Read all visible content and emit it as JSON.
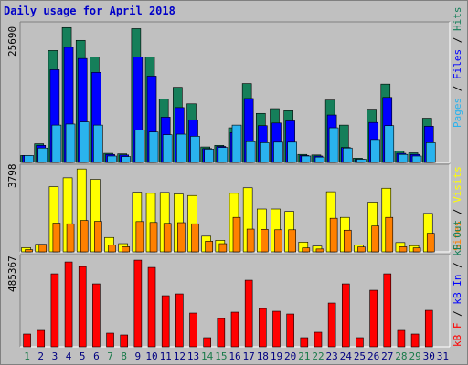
{
  "title": "Daily usage for April 2018",
  "colors": {
    "background": "#c0c0c0",
    "title": "#0000c8",
    "hits": "#157f5a",
    "files": "#0000ff",
    "pages": "#2ab3ee",
    "visits": "#ffff00",
    "sites": "#ff8000",
    "kbin": "#ff0000",
    "weekday": "#0a7a4a",
    "weekend": "#1a7a4a",
    "day_normal": "#000080"
  },
  "axis": {
    "panel1_max": "25690",
    "panel2_max": "3798",
    "panel3_max": "485367"
  },
  "legend": {
    "pages": "Pages",
    "files": "Files",
    "hits": "Hits",
    "visits": "Visits",
    "sites": "Sites",
    "kbout": "kB Out",
    "kbin": "kB In",
    "kbf": "kB F",
    "sep": "/"
  },
  "chart_data": [
    {
      "type": "bar",
      "title": "Daily usage for April 2018",
      "categories": [
        "1",
        "2",
        "3",
        "4",
        "5",
        "6",
        "7",
        "8",
        "9",
        "10",
        "11",
        "12",
        "13",
        "14",
        "15",
        "16",
        "17",
        "18",
        "19",
        "20",
        "21",
        "22",
        "23",
        "24",
        "25",
        "26",
        "27",
        "28",
        "29",
        "30",
        "31"
      ],
      "weekend_days": [
        "1",
        "7",
        "8",
        "14",
        "15",
        "21",
        "22",
        "28",
        "29"
      ],
      "ylim": [
        0,
        25690
      ],
      "series": [
        {
          "name": "Hits",
          "values": [
            1300,
            3500,
            21000,
            25300,
            22900,
            19800,
            1700,
            1600,
            25100,
            19800,
            11900,
            14100,
            11000,
            2900,
            3200,
            6500,
            14800,
            9200,
            10100,
            9700,
            1500,
            1400,
            11700,
            7000,
            800,
            10000,
            14700,
            2100,
            1800,
            8300,
            0
          ]
        },
        {
          "name": "Files",
          "values": [
            1300,
            3200,
            17400,
            21600,
            19500,
            16900,
            1500,
            1400,
            19800,
            16200,
            8500,
            10300,
            8000,
            2600,
            3000,
            5600,
            12000,
            6900,
            7400,
            7800,
            1300,
            1200,
            8900,
            2800,
            600,
            7500,
            12200,
            1700,
            1500,
            6800,
            0
          ]
        },
        {
          "name": "Pages",
          "values": [
            1300,
            2700,
            7000,
            7200,
            7600,
            7000,
            1200,
            1100,
            6100,
            5700,
            5200,
            5300,
            4900,
            2500,
            2800,
            7000,
            3900,
            3700,
            3800,
            3800,
            1200,
            1000,
            6500,
            2700,
            600,
            4300,
            6900,
            1500,
            1200,
            3700,
            0
          ]
        }
      ]
    },
    {
      "type": "bar",
      "ylim": [
        0,
        3798
      ],
      "series": [
        {
          "name": "Visits",
          "values": [
            190,
            340,
            2950,
            3350,
            3750,
            3280,
            650,
            370,
            2700,
            2650,
            2690,
            2620,
            2550,
            710,
            520,
            2650,
            2900,
            1940,
            1940,
            1830,
            440,
            260,
            2720,
            1560,
            300,
            2250,
            2880,
            420,
            280,
            1740,
            0
          ]
        },
        {
          "name": "Sites",
          "values": [
            100,
            340,
            1300,
            1270,
            1420,
            1380,
            300,
            230,
            1370,
            1330,
            1290,
            1320,
            1270,
            480,
            370,
            1560,
            1030,
            1020,
            1000,
            1000,
            180,
            130,
            1520,
            980,
            220,
            1170,
            1560,
            230,
            180,
            840,
            0
          ]
        }
      ]
    },
    {
      "type": "bar",
      "ylim": [
        0,
        485367
      ],
      "series": [
        {
          "name": "kB F",
          "values": [
            70000,
            90000,
            400000,
            465000,
            440000,
            345000,
            75000,
            65000,
            475000,
            435000,
            280000,
            290000,
            185000,
            50000,
            155000,
            190000,
            365000,
            210000,
            195000,
            180000,
            50000,
            80000,
            240000,
            345000,
            50000,
            310000,
            400000,
            90000,
            70000,
            200000,
            0
          ]
        }
      ]
    }
  ]
}
